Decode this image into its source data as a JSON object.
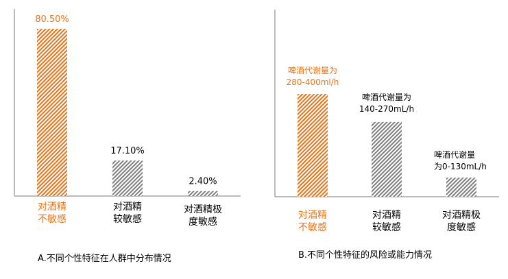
{
  "colors": {
    "highlight": "#E8741A",
    "neutral": "#7F7F7F",
    "axis": "#A6A6A6",
    "text": "#000000"
  },
  "chart_data": [
    {
      "type": "bar",
      "title": "A.不同个性特征在人群中分布情况",
      "categories": [
        [
          "对酒精",
          "不敏感"
        ],
        [
          "对酒精",
          "较敏感"
        ],
        [
          "对酒精极",
          "度敏感"
        ]
      ],
      "values": [
        80.5,
        17.1,
        2.4
      ],
      "data_labels": [
        "80.50%",
        "17.10%",
        "2.40%"
      ],
      "highlight_index": 0,
      "ylim": [
        0,
        90
      ],
      "grid": false,
      "xlabel": "",
      "ylabel": ""
    },
    {
      "type": "bar",
      "title": "B.不同个性特征的风险或能力情况",
      "categories": [
        [
          "对酒精",
          "不敏感"
        ],
        [
          "对酒精",
          "较敏感"
        ],
        [
          "对酒精极",
          "度敏感"
        ]
      ],
      "values": [
        49.5,
        36,
        9.2
      ],
      "data_labels": [
        [
          "啤酒代谢量为",
          "280-400ml/h"
        ],
        [
          "啤酒代谢量为",
          "140-270mL/h"
        ],
        [
          "啤酒代谢量",
          "为0-130mL/h"
        ]
      ],
      "highlight_index": 0,
      "ylim": [
        0,
        90
      ],
      "grid": false,
      "xlabel": "",
      "ylabel": ""
    }
  ]
}
